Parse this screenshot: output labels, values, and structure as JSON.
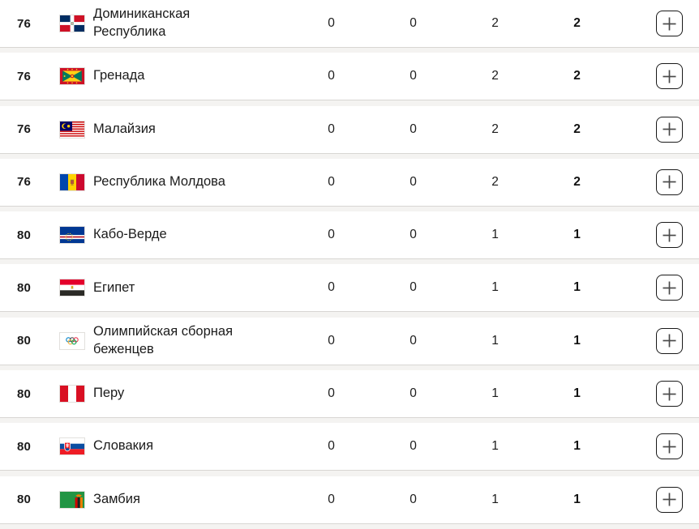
{
  "colors": {
    "page_background": "#f4f3f1",
    "row_background": "#ffffff",
    "separator": "#d8d6d3",
    "text": "#1b1b1b",
    "expand_button_border": "#191919",
    "plus_glyph": "#4a4a4a"
  },
  "table": {
    "rows": [
      {
        "rank": "76",
        "country": "Доминиканская Республика",
        "flag": "dominican-republic",
        "gold": "0",
        "silver": "0",
        "bronze": "2",
        "total": "2"
      },
      {
        "rank": "76",
        "country": "Гренада",
        "flag": "grenada",
        "gold": "0",
        "silver": "0",
        "bronze": "2",
        "total": "2"
      },
      {
        "rank": "76",
        "country": "Малайзия",
        "flag": "malaysia",
        "gold": "0",
        "silver": "0",
        "bronze": "2",
        "total": "2"
      },
      {
        "rank": "76",
        "country": "Республика Молдова",
        "flag": "moldova",
        "gold": "0",
        "silver": "0",
        "bronze": "2",
        "total": "2"
      },
      {
        "rank": "80",
        "country": "Кабо-Верде",
        "flag": "cabo-verde",
        "gold": "0",
        "silver": "0",
        "bronze": "1",
        "total": "1"
      },
      {
        "rank": "80",
        "country": "Египет",
        "flag": "egypt",
        "gold": "0",
        "silver": "0",
        "bronze": "1",
        "total": "1"
      },
      {
        "rank": "80",
        "country": "Олимпийская сборная беженцев",
        "flag": "olympic-refugee-team",
        "gold": "0",
        "silver": "0",
        "bronze": "1",
        "total": "1"
      },
      {
        "rank": "80",
        "country": "Перу",
        "flag": "peru",
        "gold": "0",
        "silver": "0",
        "bronze": "1",
        "total": "1"
      },
      {
        "rank": "80",
        "country": "Словакия",
        "flag": "slovakia",
        "gold": "0",
        "silver": "0",
        "bronze": "1",
        "total": "1"
      },
      {
        "rank": "80",
        "country": "Замбия",
        "flag": "zambia",
        "gold": "0",
        "silver": "0",
        "bronze": "1",
        "total": "1"
      }
    ]
  }
}
